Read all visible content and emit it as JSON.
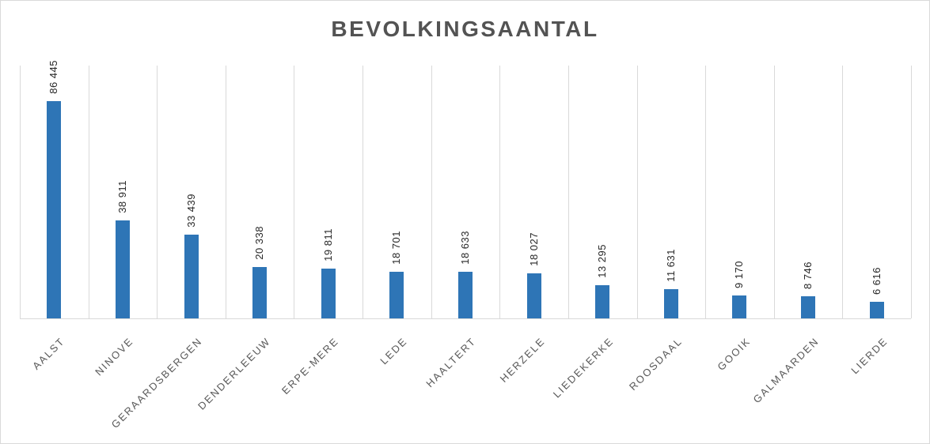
{
  "chart_data": {
    "type": "bar",
    "title": "BEVOLKINGSAANTAL",
    "categories": [
      "AALST",
      "NINOVE",
      "GERAARDSBERGEN",
      "DENDERLEEUW",
      "ERPE-MERE",
      "LEDE",
      "HAALTERT",
      "HERZELE",
      "LIEDEKERKE",
      "ROOSDAAL",
      "GOOIK",
      "GALMAARDEN",
      "LIERDE"
    ],
    "values": [
      86445,
      38911,
      33439,
      20338,
      19811,
      18701,
      18633,
      18027,
      13295,
      11631,
      9170,
      8746,
      6616
    ],
    "value_labels": [
      "86 445",
      "38 911",
      "33 439",
      "20 338",
      "19 811",
      "18 701",
      "18 633",
      "18 027",
      "13 295",
      "11 631",
      "9 170",
      "8 746",
      "6 616"
    ],
    "xlabel": "",
    "ylabel": "",
    "ylim": [
      0,
      100000
    ],
    "grid": "vertical-category-separators",
    "legend": "none",
    "data_label_rotation": -90,
    "category_label_rotation": -45
  },
  "colors": {
    "bar": "#2E75B6",
    "gridline": "#D9D9D9",
    "axis_line": "#D9D9D9",
    "title_text": "#535353",
    "category_text": "#595959",
    "value_text": "#262626",
    "background": "#FFFFFF",
    "chart_border": "#D9D9D9"
  }
}
